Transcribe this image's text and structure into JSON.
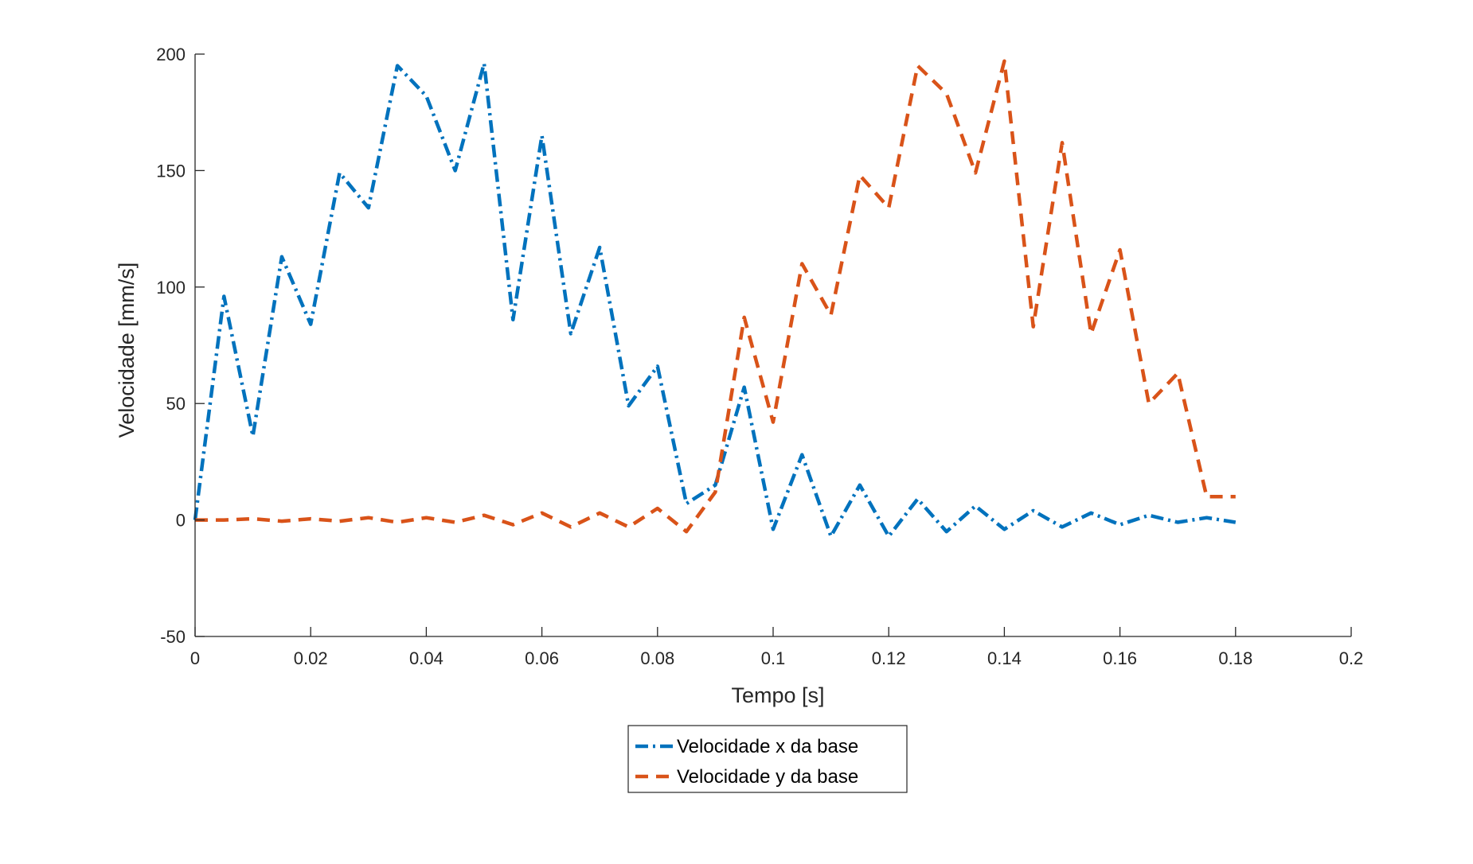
{
  "chart_data": {
    "type": "line",
    "title": "",
    "xlabel": "Tempo [s]",
    "ylabel": "Velocidade [mm/s]",
    "xlim": [
      0,
      0.2
    ],
    "ylim": [
      -50,
      200
    ],
    "xticks": [
      0,
      0.02,
      0.04,
      0.06,
      0.08,
      0.1,
      0.12,
      0.14,
      0.16,
      0.18,
      0.2
    ],
    "xtick_labels": [
      "0",
      "0.02",
      "0.04",
      "0.06",
      "0.08",
      "0.1",
      "0.12",
      "0.14",
      "0.16",
      "0.18",
      "0.2"
    ],
    "yticks": [
      -50,
      0,
      50,
      100,
      150,
      200
    ],
    "ytick_labels": [
      "-50",
      "0",
      "50",
      "100",
      "150",
      "200"
    ],
    "grid": false,
    "legend_position": "bottom-center outside",
    "x": [
      0,
      0.005,
      0.01,
      0.015,
      0.02,
      0.025,
      0.03,
      0.035,
      0.04,
      0.045,
      0.05,
      0.055,
      0.06,
      0.065,
      0.07,
      0.075,
      0.08,
      0.085,
      0.09,
      0.095,
      0.1,
      0.105,
      0.11,
      0.115,
      0.12,
      0.125,
      0.13,
      0.135,
      0.14,
      0.145,
      0.15,
      0.155,
      0.16,
      0.165,
      0.17,
      0.175,
      0.18
    ],
    "series": [
      {
        "name": "Velocidade x da base",
        "color": "#0072BD",
        "line_style": "dash-dot",
        "values": [
          0,
          96,
          36,
          113,
          84,
          149,
          134,
          195,
          182,
          150,
          196,
          86,
          165,
          80,
          117,
          49,
          66,
          7,
          15,
          57,
          -4,
          28,
          -7,
          15,
          -7,
          9,
          -5,
          6,
          -4,
          4,
          -3,
          3,
          -2,
          2,
          -1,
          1,
          -1
        ]
      },
      {
        "name": "Velocidade y da base",
        "color": "#D95319",
        "line_style": "dashed",
        "values": [
          0,
          0,
          0.5,
          -0.5,
          0.5,
          -0.5,
          1,
          -1,
          1,
          -1,
          2,
          -2,
          3,
          -3,
          3,
          -3,
          5,
          -5,
          12,
          87,
          42,
          110,
          88,
          148,
          134,
          195,
          183,
          149,
          197,
          83,
          162,
          80,
          116,
          50,
          63,
          10,
          10
        ]
      }
    ]
  }
}
